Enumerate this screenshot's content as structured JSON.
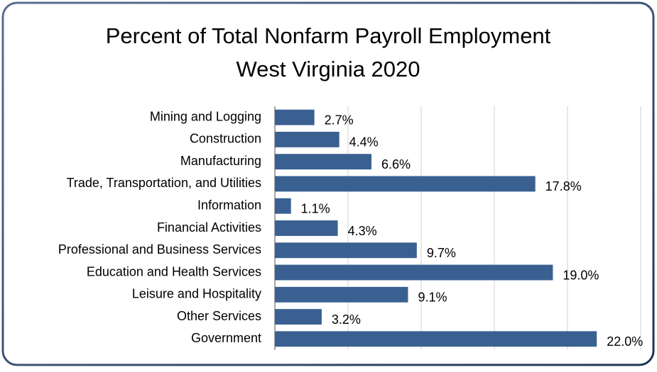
{
  "chart_data": {
    "type": "bar",
    "orientation": "horizontal",
    "title": "Percent of Total Nonfarm Payroll Employment",
    "subtitle": "West Virginia 2020",
    "categories": [
      "Mining and Logging",
      "Construction",
      "Manufacturing",
      "Trade, Transportation, and Utilities",
      "Information",
      "Financial Activities",
      "Professional and Business Services",
      "Education and Health Services",
      "Leisure and Hospitality",
      "Other Services",
      "Government"
    ],
    "values": [
      2.7,
      4.4,
      6.6,
      17.8,
      1.1,
      4.3,
      9.7,
      19.0,
      9.1,
      3.2,
      22.0
    ],
    "value_labels": [
      "2.7%",
      "4.4%",
      "6.6%",
      "17.8%",
      "1.1%",
      "4.3%",
      "9.7%",
      "19.0%",
      "9.1%",
      "3.2%",
      "22.0%"
    ],
    "color": "#3a6091",
    "xlim": [
      0,
      25
    ],
    "xticks": [
      0,
      5,
      10,
      15,
      20,
      25
    ],
    "grid": true
  }
}
